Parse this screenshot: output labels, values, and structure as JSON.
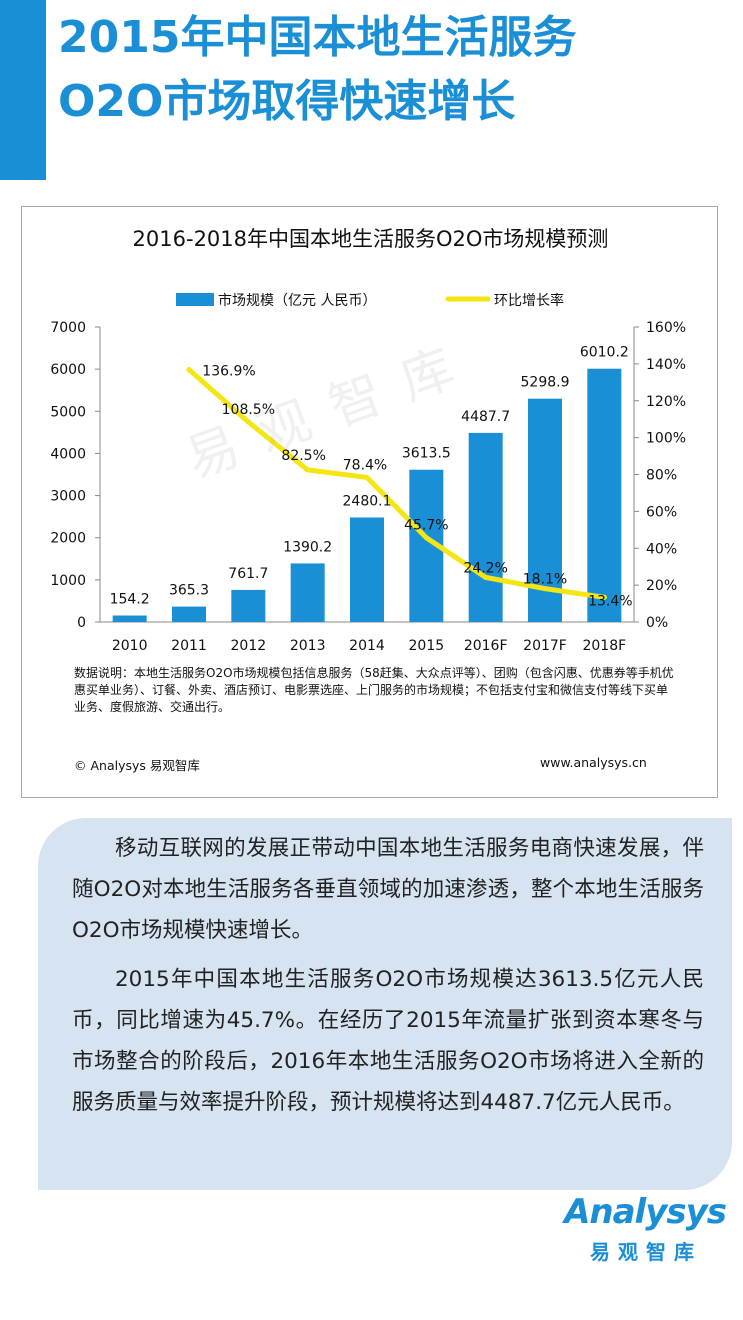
{
  "header": {
    "title_line1": "2015年中国本地生活服务",
    "title_line2": "O2O市场取得快速增长"
  },
  "watermark": "易观智库",
  "chart_data": {
    "type": "bar+line",
    "title": "2016-2018年中国本地生活服务O2O市场规模预测",
    "categories": [
      "2010",
      "2011",
      "2012",
      "2013",
      "2014",
      "2015",
      "2016F",
      "2017F",
      "2018F"
    ],
    "series": [
      {
        "name": "市场规模（亿元 人民币）",
        "type": "bar",
        "axis": "left",
        "color": "#1a8fd6",
        "values": [
          154.2,
          365.3,
          761.7,
          1390.2,
          2480.1,
          3613.5,
          4487.7,
          5298.9,
          6010.2
        ],
        "labels": [
          "154.2",
          "365.3",
          "761.7",
          "1390.2",
          "2480.1",
          "3613.5",
          "4487.7",
          "5298.9",
          "6010.2"
        ]
      },
      {
        "name": "环比增长率",
        "type": "line",
        "axis": "right",
        "color": "#f5e513",
        "values": [
          null,
          136.9,
          108.5,
          82.5,
          78.4,
          45.7,
          24.2,
          18.1,
          13.4
        ],
        "labels": [
          "",
          "136.9%",
          "108.5%",
          "82.5%",
          "78.4%",
          "45.7%",
          "24.2%",
          "18.1%",
          "13.4%"
        ]
      }
    ],
    "y_left": {
      "min": 0,
      "max": 7000,
      "ticks": [
        "0",
        "1000",
        "2000",
        "3000",
        "4000",
        "5000",
        "6000",
        "7000"
      ]
    },
    "y_right": {
      "min": 0,
      "max": 160,
      "ticks": [
        "0%",
        "20%",
        "40%",
        "60%",
        "80%",
        "100%",
        "120%",
        "140%",
        "160%"
      ]
    },
    "legend_position": "top-center",
    "grid": false
  },
  "chart_note": "数据说明：本地生活服务O2O市场规模包括信息服务（58赶集、大众点评等）、团购（包含闪惠、优惠券等手机优惠买单业务）、订餐、外卖、酒店预订、电影票选座、上门服务的市场规模；不包括支付宝和微信支付等线下买单业务、度假旅游、交通出行。",
  "chart_footer": {
    "source": "© Analysys 易观智库",
    "url": "www.analysys.cn"
  },
  "body_text": {
    "para1": "移动互联网的发展正带动中国本地生活服务电商快速发展，伴随O2O对本地生活服务各垂直领域的加速渗透，整个本地生活服务O2O市场规模快速增长。",
    "para2": "2015年中国本地生活服务O2O市场规模达3613.5亿元人民币，同比增速为45.7%。在经历了2015年流量扩张到资本寒冬与市场整合的阶段后，2016年本地生活服务O2O市场将进入全新的服务质量与效率提升阶段，预计规模将达到4487.7亿元人民币。"
  },
  "logo": {
    "wordmark": "Analysys",
    "subtitle": "易观智库"
  },
  "colors": {
    "accent": "#1a8fd6",
    "line": "#f5e513",
    "panel": "#d6e4f1"
  }
}
